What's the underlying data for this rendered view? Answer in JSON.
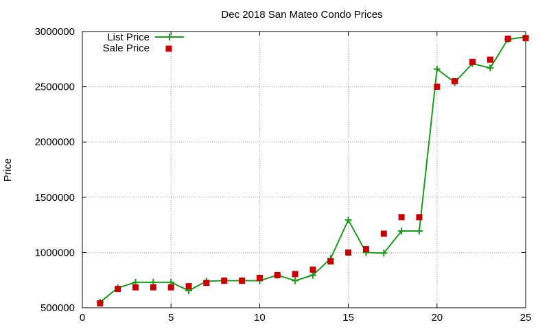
{
  "chart_data": {
    "type": "line",
    "title": "Dec 2018 San Mateo Condo Prices",
    "xlabel": "",
    "ylabel": "Price",
    "xlim": [
      0,
      25
    ],
    "ylim": [
      500000,
      3000000
    ],
    "x_ticks": [
      0,
      5,
      10,
      15,
      20,
      25
    ],
    "x_tick_labels": [
      "0",
      "5",
      "10",
      "15",
      "20",
      "25"
    ],
    "y_ticks": [
      500000,
      1000000,
      1500000,
      2000000,
      2500000,
      3000000
    ],
    "y_tick_labels": [
      "500000",
      "1000000",
      "1500000",
      "2000000",
      "2500000",
      "3000000"
    ],
    "grid": true,
    "legend_position": "top-left",
    "series": [
      {
        "name": "List Price",
        "style": "line+cross",
        "color": "#1a9a1a",
        "x": [
          1,
          2,
          3,
          4,
          5,
          6,
          7,
          8,
          9,
          10,
          11,
          12,
          13,
          14,
          15,
          16,
          17,
          18,
          19,
          20,
          21,
          22,
          23,
          24,
          25
        ],
        "values": [
          550000,
          680000,
          730000,
          730000,
          730000,
          655000,
          740000,
          745000,
          745000,
          745000,
          795000,
          745000,
          795000,
          945000,
          1295000,
          1000000,
          995000,
          1195000,
          1195000,
          2660000,
          2540000,
          2710000,
          2670000,
          2930000,
          2950000
        ]
      },
      {
        "name": "Sale Price",
        "style": "square",
        "color": "#c80000",
        "x": [
          1,
          2,
          3,
          4,
          5,
          6,
          7,
          8,
          9,
          10,
          11,
          12,
          13,
          14,
          15,
          16,
          17,
          18,
          19,
          20,
          21,
          22,
          23,
          24,
          25
        ],
        "values": [
          540000,
          670000,
          685000,
          685000,
          685000,
          695000,
          725000,
          745000,
          745000,
          770000,
          795000,
          805000,
          845000,
          920000,
          1000000,
          1030000,
          1170000,
          1320000,
          1320000,
          2500000,
          2550000,
          2725000,
          2745000,
          2935000,
          2940000
        ]
      }
    ]
  }
}
